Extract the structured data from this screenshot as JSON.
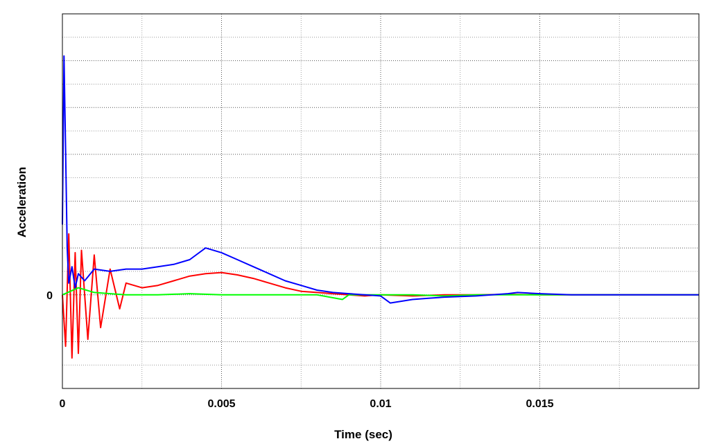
{
  "chart_data": {
    "type": "line",
    "xlabel": "Time (sec)",
    "ylabel": "Acceleration",
    "xlim": [
      0,
      0.02
    ],
    "ylim": [
      -4,
      12
    ],
    "x_ticks": [
      {
        "value": 0,
        "label": "0"
      },
      {
        "value": 0.005,
        "label": "0.005"
      },
      {
        "value": 0.01,
        "label": "0.01"
      },
      {
        "value": 0.015,
        "label": "0.015"
      }
    ],
    "y_ticks": [
      {
        "value": 0,
        "label": "0"
      }
    ],
    "grid": true,
    "legend": "none",
    "series": [
      {
        "color": "#ff0000",
        "x": [
          0,
          0.0001,
          0.0002,
          0.0003,
          0.0004,
          0.0005,
          0.0006,
          0.0008,
          0.001,
          0.0012,
          0.0015,
          0.0018,
          0.002,
          0.0025,
          0.003,
          0.0035,
          0.004,
          0.0045,
          0.005,
          0.0055,
          0.006,
          0.0065,
          0.007,
          0.0075,
          0.008,
          0.0085,
          0.009,
          0.0095,
          0.01,
          0.011,
          0.012,
          0.013,
          0.014,
          0.015,
          0.016,
          0.017,
          0.018,
          0.019,
          0.02
        ],
        "y": [
          0,
          -2.2,
          2.6,
          -2.7,
          1.8,
          -2.5,
          1.9,
          -1.9,
          1.7,
          -1.4,
          1.1,
          -0.6,
          0.5,
          0.3,
          0.4,
          0.6,
          0.8,
          0.9,
          0.95,
          0.85,
          0.7,
          0.5,
          0.3,
          0.15,
          0.1,
          0.05,
          0,
          -0.05,
          0,
          -0.05,
          0,
          0,
          0.02,
          0,
          0,
          0,
          0,
          0,
          0
        ]
      },
      {
        "color": "#00ff00",
        "x": [
          0,
          0.0005,
          0.001,
          0.0015,
          0.002,
          0.003,
          0.004,
          0.005,
          0.006,
          0.007,
          0.008,
          0.0088,
          0.009,
          0.01,
          0.011,
          0.012,
          0.013,
          0.014,
          0.015,
          0.016,
          0.017,
          0.018,
          0.019,
          0.02
        ],
        "y": [
          0,
          0.3,
          0.1,
          0.05,
          0,
          0,
          0.05,
          0,
          0,
          0,
          0,
          -0.2,
          0,
          0,
          0,
          -0.05,
          0,
          0,
          0,
          0,
          0,
          0,
          0,
          0
        ]
      },
      {
        "color": "#0000ff",
        "x": [
          0,
          5e-05,
          0.0001,
          0.00015,
          0.0002,
          0.0003,
          0.0004,
          0.0005,
          0.0007,
          0.001,
          0.0015,
          0.002,
          0.0025,
          0.003,
          0.0035,
          0.004,
          0.0045,
          0.005,
          0.0055,
          0.006,
          0.0065,
          0.007,
          0.0075,
          0.008,
          0.0085,
          0.009,
          0.0095,
          0.01,
          0.0103,
          0.011,
          0.0115,
          0.012,
          0.013,
          0.014,
          0.0143,
          0.015,
          0.016,
          0.017,
          0.018,
          0.019,
          0.02
        ],
        "y": [
          3.0,
          10.2,
          6.2,
          2.0,
          0.5,
          1.2,
          0.3,
          0.9,
          0.6,
          1.1,
          1.0,
          1.1,
          1.1,
          1.2,
          1.3,
          1.5,
          2.0,
          1.8,
          1.5,
          1.2,
          0.9,
          0.6,
          0.4,
          0.2,
          0.1,
          0.05,
          0,
          -0.05,
          -0.35,
          -0.2,
          -0.15,
          -0.1,
          -0.05,
          0.05,
          0.1,
          0.05,
          0,
          0,
          0,
          0,
          0
        ]
      }
    ]
  }
}
